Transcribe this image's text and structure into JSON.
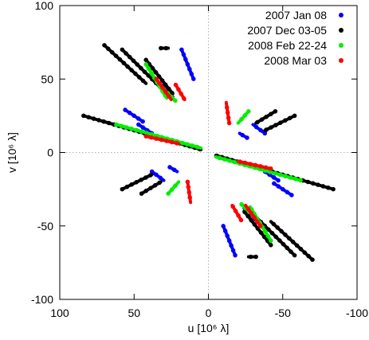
{
  "chart_data": {
    "type": "scatter",
    "title": "",
    "xlabel": "u [10⁶ λ]",
    "ylabel": "v [10⁶ λ]",
    "xlim": [
      100,
      -100
    ],
    "ylim": [
      -100,
      100
    ],
    "x_reversed": true,
    "x_ticks": [
      100,
      50,
      0,
      -50,
      -100
    ],
    "y_ticks": [
      -100,
      -50,
      0,
      50,
      100
    ],
    "x_tick_labels": [
      "100",
      "50",
      "0",
      "-50",
      "-100"
    ],
    "y_tick_labels": [
      "-100",
      "-50",
      "0",
      "50",
      "100"
    ],
    "zero_lines": true,
    "grid": false,
    "legend_position": "top-right",
    "series": [
      {
        "name": "2007 Jan 08",
        "color": "#0000ff",
        "tracks": [
          [
            [
              56,
              29
            ],
            [
              44,
              21
            ]
          ],
          [
            [
              47,
              19
            ],
            [
              38,
              13
            ]
          ],
          [
            [
              34,
              48
            ],
            [
              24,
              38
            ]
          ],
          [
            [
              18,
              70
            ],
            [
              10,
              50
            ]
          ],
          [
            [
              38,
              -13
            ],
            [
              30,
              -19
            ]
          ],
          [
            [
              26,
              -10
            ],
            [
              21,
              -13
            ]
          ],
          [
            [
              -56,
              -29
            ],
            [
              -44,
              -21
            ]
          ],
          [
            [
              -47,
              -19
            ],
            [
              -38,
              -13
            ]
          ],
          [
            [
              -34,
              -48
            ],
            [
              -24,
              -38
            ]
          ],
          [
            [
              -18,
              -70
            ],
            [
              -10,
              -50
            ]
          ],
          [
            [
              -38,
              13
            ],
            [
              -30,
              19
            ]
          ],
          [
            [
              -26,
              10
            ],
            [
              -21,
              13
            ]
          ]
        ]
      },
      {
        "name": "2007 Dec 03-05",
        "color": "#000000",
        "tracks": [
          [
            [
              84,
              25
            ],
            [
              5,
              2
            ]
          ],
          [
            [
              70,
              73
            ],
            [
              42,
              47
            ]
          ],
          [
            [
              58,
              70
            ],
            [
              33,
              45
            ]
          ],
          [
            [
              42,
              63
            ],
            [
              24,
              40
            ]
          ],
          [
            [
              32,
              71
            ],
            [
              27,
              71
            ]
          ],
          [
            [
              58,
              -25
            ],
            [
              38,
              -15
            ]
          ],
          [
            [
              45,
              -28
            ],
            [
              32,
              -20
            ]
          ],
          [
            [
              -84,
              -25
            ],
            [
              -5,
              -2
            ]
          ],
          [
            [
              -70,
              -73
            ],
            [
              -42,
              -47
            ]
          ],
          [
            [
              -58,
              -70
            ],
            [
              -33,
              -45
            ]
          ],
          [
            [
              -42,
              -63
            ],
            [
              -24,
              -40
            ]
          ],
          [
            [
              -32,
              -71
            ],
            [
              -27,
              -71
            ]
          ],
          [
            [
              -58,
              25
            ],
            [
              -38,
              15
            ]
          ],
          [
            [
              -45,
              28
            ],
            [
              -32,
              20
            ]
          ]
        ]
      },
      {
        "name": "2008 Feb 22-24",
        "color": "#00ee00",
        "tracks": [
          [
            [
              62,
              19
            ],
            [
              5,
              3
            ]
          ],
          [
            [
              42,
              60
            ],
            [
              28,
              37
            ]
          ],
          [
            [
              30,
              43
            ],
            [
              22,
              35
            ]
          ],
          [
            [
              27,
              -28
            ],
            [
              20,
              -20
            ]
          ],
          [
            [
              -62,
              -19
            ],
            [
              -5,
              -3
            ]
          ],
          [
            [
              -42,
              -60
            ],
            [
              -28,
              -37
            ]
          ],
          [
            [
              -30,
              -43
            ],
            [
              -22,
              -35
            ]
          ],
          [
            [
              -27,
              28
            ],
            [
              -20,
              20
            ]
          ]
        ]
      },
      {
        "name": "2008 Mar 03",
        "color": "#ff0000",
        "tracks": [
          [
            [
              35,
              50
            ],
            [
              25,
              36
            ]
          ],
          [
            [
              22,
              46
            ],
            [
              16,
              36
            ]
          ],
          [
            [
              42,
              11
            ],
            [
              20,
              6
            ]
          ],
          [
            [
              14,
              -20
            ],
            [
              12,
              -34
            ]
          ],
          [
            [
              -35,
              -50
            ],
            [
              -25,
              -36
            ]
          ],
          [
            [
              -22,
              -46
            ],
            [
              -16,
              -36
            ]
          ],
          [
            [
              -42,
              -11
            ],
            [
              -20,
              -6
            ]
          ],
          [
            [
              -14,
              20
            ],
            [
              -12,
              34
            ]
          ]
        ]
      }
    ]
  }
}
